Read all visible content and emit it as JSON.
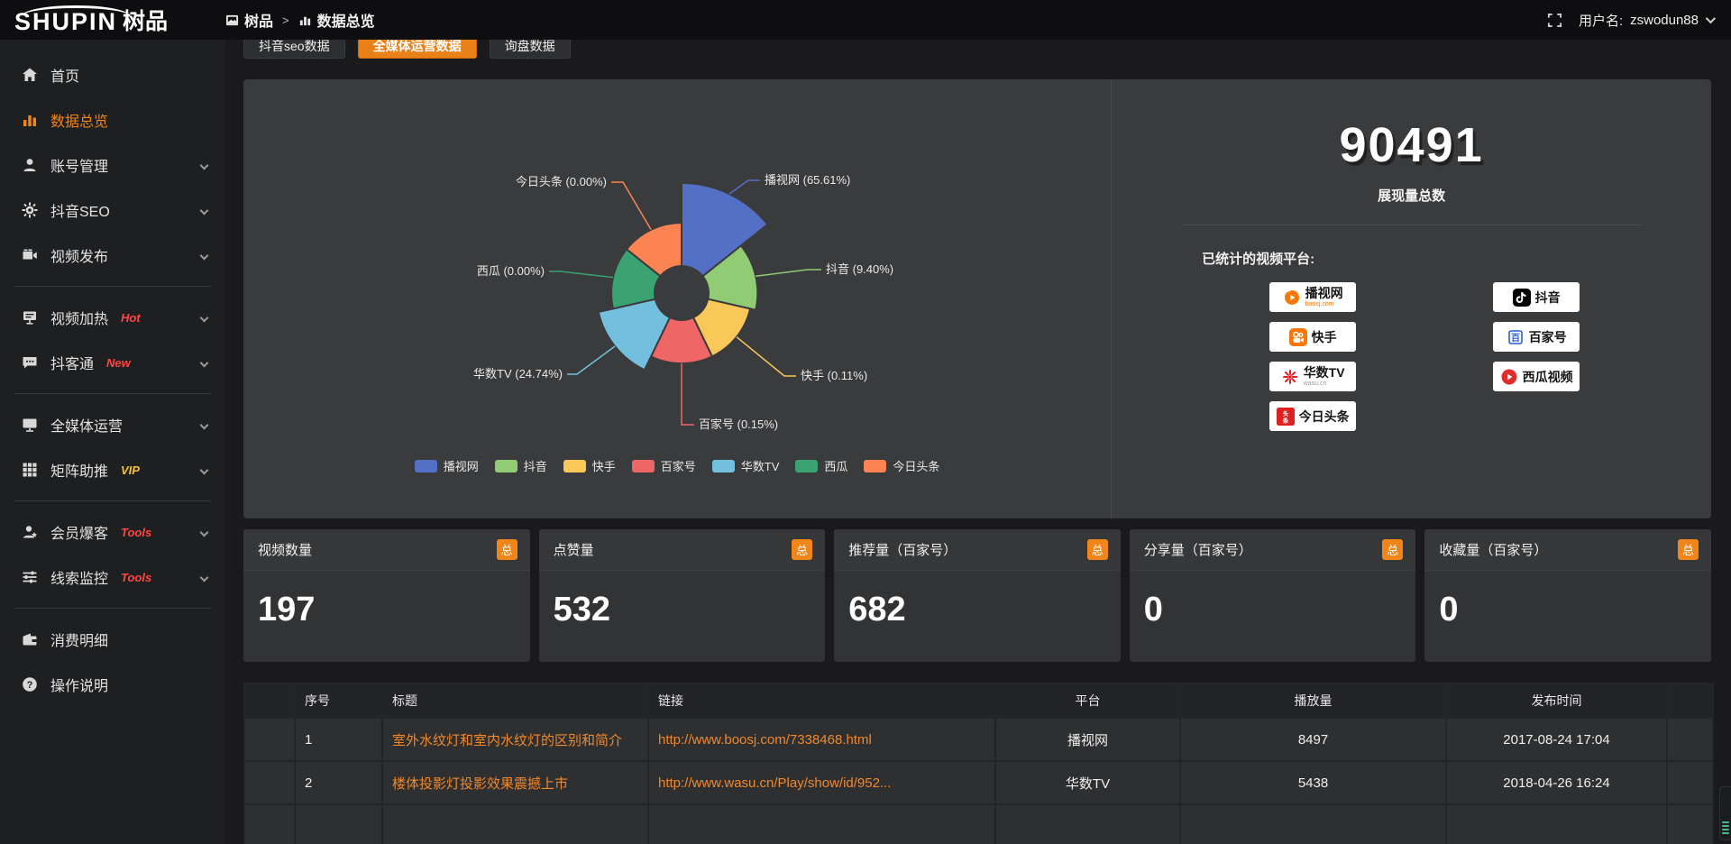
{
  "topbar": {
    "logo_main": "SHUPIN",
    "logo_suffix": "树品",
    "breadcrumb": [
      {
        "icon": "app-icon",
        "label": "树品"
      },
      {
        "icon": "bar-chart-icon",
        "label": "数据总览"
      }
    ],
    "separator": ">",
    "username_label": "用户名:",
    "username": "zswodun88"
  },
  "sidebar": {
    "items": [
      {
        "icon": "home",
        "label": "首页"
      },
      {
        "icon": "bar-chart",
        "label": "数据总览",
        "active": true
      },
      {
        "icon": "user",
        "label": "账号管理",
        "chevron": true
      },
      {
        "icon": "gear",
        "label": "抖音SEO",
        "chevron": true
      },
      {
        "icon": "video",
        "label": "视频发布",
        "chevron": true,
        "divider_after": true
      },
      {
        "icon": "screen-heat",
        "label": "视频加热",
        "badge": "Hot",
        "badge_color": "#ff4545",
        "chevron": true
      },
      {
        "icon": "chat",
        "label": "抖客通",
        "badge": "New",
        "badge_color": "#ff4545",
        "chevron": true,
        "divider_after": true
      },
      {
        "icon": "monitor",
        "label": "全媒体运营",
        "chevron": true
      },
      {
        "icon": "grid",
        "label": "矩阵助推",
        "badge": "VIP",
        "badge_color": "#f6c13d",
        "chevron": true,
        "divider_after": true
      },
      {
        "icon": "user-star",
        "label": "会员爆客",
        "badge": "Tools",
        "badge_color": "#ff4545",
        "chevron": true
      },
      {
        "icon": "sliders",
        "label": "线索监控",
        "badge": "Tools",
        "badge_color": "#ff4545",
        "chevron": true,
        "divider_after": true
      },
      {
        "icon": "wallet",
        "label": "消费明细"
      },
      {
        "icon": "help",
        "label": "操作说明"
      }
    ]
  },
  "tabs": [
    {
      "label": "抖音seo数据"
    },
    {
      "label": "全媒体运营数据",
      "active": true
    },
    {
      "label": "询盘数据"
    }
  ],
  "chart_data": {
    "type": "pie",
    "subtype": "nightingale-rose",
    "title": "",
    "legend_position": "bottom",
    "label_format": "{name} ({percent}%)",
    "items": [
      {
        "name": "播视网",
        "percent": 65.61,
        "color": "#5470c6"
      },
      {
        "name": "抖音",
        "percent": 9.4,
        "color": "#91cc75"
      },
      {
        "name": "快手",
        "percent": 0.11,
        "color": "#fac858"
      },
      {
        "name": "百家号",
        "percent": 0.15,
        "color": "#ee6666"
      },
      {
        "name": "华数TV",
        "percent": 24.74,
        "color": "#73c0de"
      },
      {
        "name": "西瓜",
        "percent": 0.0,
        "color": "#3ba272"
      },
      {
        "name": "今日头条",
        "percent": 0.0,
        "color": "#fc8452"
      }
    ]
  },
  "overview": {
    "total_value": "90491",
    "total_label": "展现量总数",
    "platforms_title": "已统计的视频平台:",
    "platform_columns": {
      "left": [
        {
          "icon": "boosj",
          "name": "播视网",
          "sub": "boosj.com"
        },
        {
          "icon": "kuaishou",
          "name": "快手"
        },
        {
          "icon": "wasu",
          "name": "华数TV",
          "sub": "wasu.cn"
        },
        {
          "icon": "toutiao",
          "name": "今日头条"
        }
      ],
      "right": [
        {
          "icon": "douyin",
          "name": "抖音"
        },
        {
          "icon": "baijiahao",
          "name": "百家号"
        },
        {
          "icon": "xigua",
          "name": "西瓜视频"
        }
      ]
    }
  },
  "cards": [
    {
      "label": "视频数量",
      "badge": "总",
      "value": "197"
    },
    {
      "label": "点赞量",
      "badge": "总",
      "value": "532"
    },
    {
      "label": "推荐量（百家号）",
      "badge": "总",
      "value": "682"
    },
    {
      "label": "分享量（百家号）",
      "badge": "总",
      "value": "0"
    },
    {
      "label": "收藏量（百家号）",
      "badge": "总",
      "value": "0"
    }
  ],
  "table": {
    "columns": [
      "",
      "序号",
      "标题",
      "链接",
      "平台",
      "播放量",
      "发布时间"
    ],
    "rows": [
      {
        "num": "1",
        "title": "室外水纹灯和室内水纹灯的区别和简介",
        "link": "http://www.boosj.com/7338468.html",
        "platform": "播视网",
        "plays": "8497",
        "time": "2017-08-24 17:04"
      },
      {
        "num": "2",
        "title": "楼体投影灯投影效果震撼上市",
        "link": "http://www.wasu.cn/Play/show/id/952...",
        "platform": "华数TV",
        "plays": "5438",
        "time": "2018-04-26 16:24"
      }
    ]
  },
  "colors": {
    "accent_orange": "#ee8224",
    "panel_bg": "#3a3b3d",
    "link_orange": "#f0882c",
    "edge_widget_stripe": "#49b981"
  }
}
